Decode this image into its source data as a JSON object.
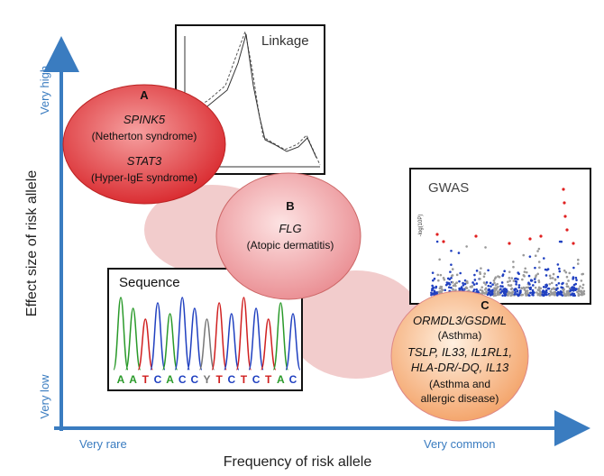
{
  "axes": {
    "y_label": "Effect size of risk allele",
    "y_high": "Very high",
    "y_low": "Very low",
    "x_label": "Frequency of risk allele",
    "x_low": "Very rare",
    "x_high": "Very common"
  },
  "panels": {
    "linkage": {
      "title": "Linkage"
    },
    "gwas": {
      "title": "GWAS",
      "y_label": "-log(10P)"
    },
    "sequence": {
      "title": "Sequence",
      "bases": [
        "A",
        "A",
        "T",
        "C",
        "A",
        "C",
        "C",
        "Y",
        "T",
        "C",
        "T",
        "C",
        "T",
        "A",
        "C"
      ]
    }
  },
  "groups": [
    {
      "label": "A",
      "lines": [
        "SPINK5",
        "(Netherton syndrome)",
        "STAT3",
        "(Hyper-IgE syndrome)"
      ]
    },
    {
      "label": "B",
      "lines": [
        "FLG",
        "(Atopic dermatitis)"
      ]
    },
    {
      "label": "C",
      "lines": [
        "ORMDL3/GSDML",
        "(Asthma)",
        "TSLP, IL33, IL1RL1,",
        "HLA-DR/-DQ, IL13",
        "(Asthma and",
        "allergic disease)"
      ]
    }
  ]
}
